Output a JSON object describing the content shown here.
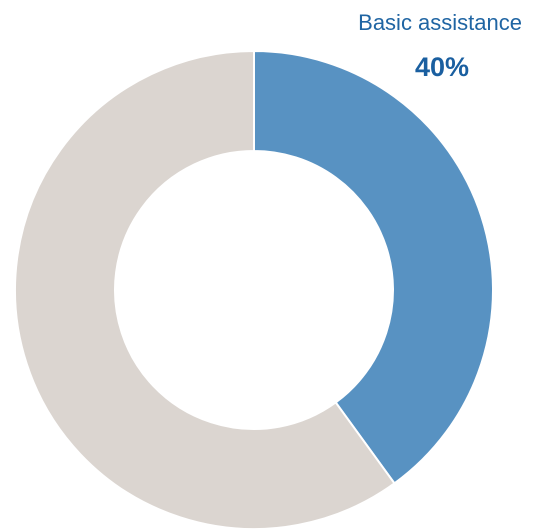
{
  "chart_data": {
    "type": "pie",
    "variant": "donut",
    "slices": [
      {
        "label": "Basic assistance",
        "value": 40,
        "display": "40%",
        "color": "#5892c2"
      },
      {
        "value": 60,
        "color": "#dbd5d0"
      }
    ],
    "slice_border_color": "#ffffff",
    "legend": "none"
  }
}
